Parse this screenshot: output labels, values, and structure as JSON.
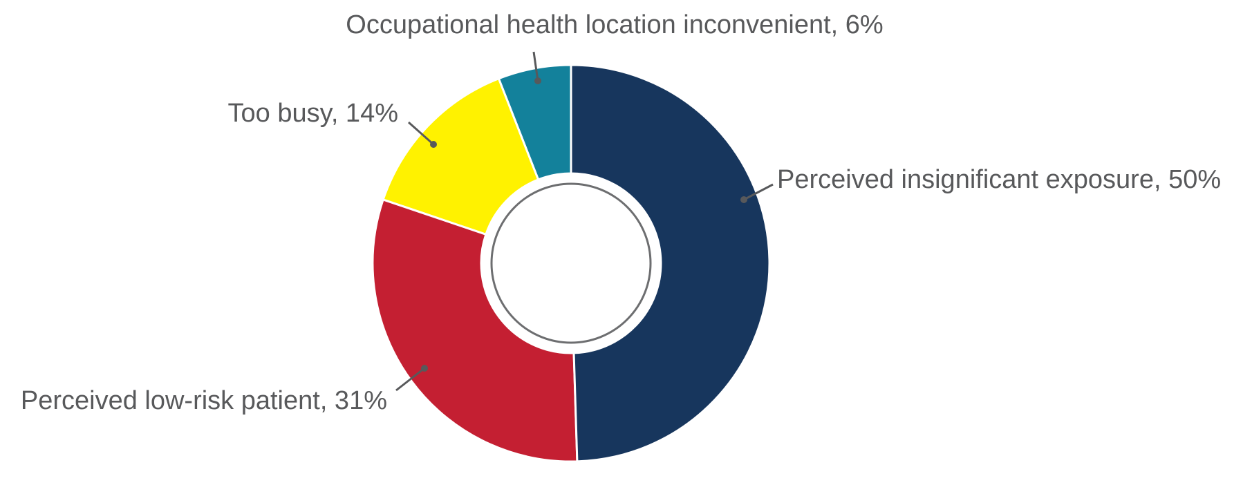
{
  "chart_data": {
    "type": "donut",
    "labels": [
      "Perceived insignificant exposure, 50%",
      "Perceived low-risk patient, 31%",
      "Too busy, 14%",
      "Occupational health location inconvenient, 6%"
    ],
    "values": [
      50,
      31,
      14,
      6
    ],
    "colors": [
      "#17365d",
      "#c41f32",
      "#fff200",
      "#13819b"
    ]
  }
}
